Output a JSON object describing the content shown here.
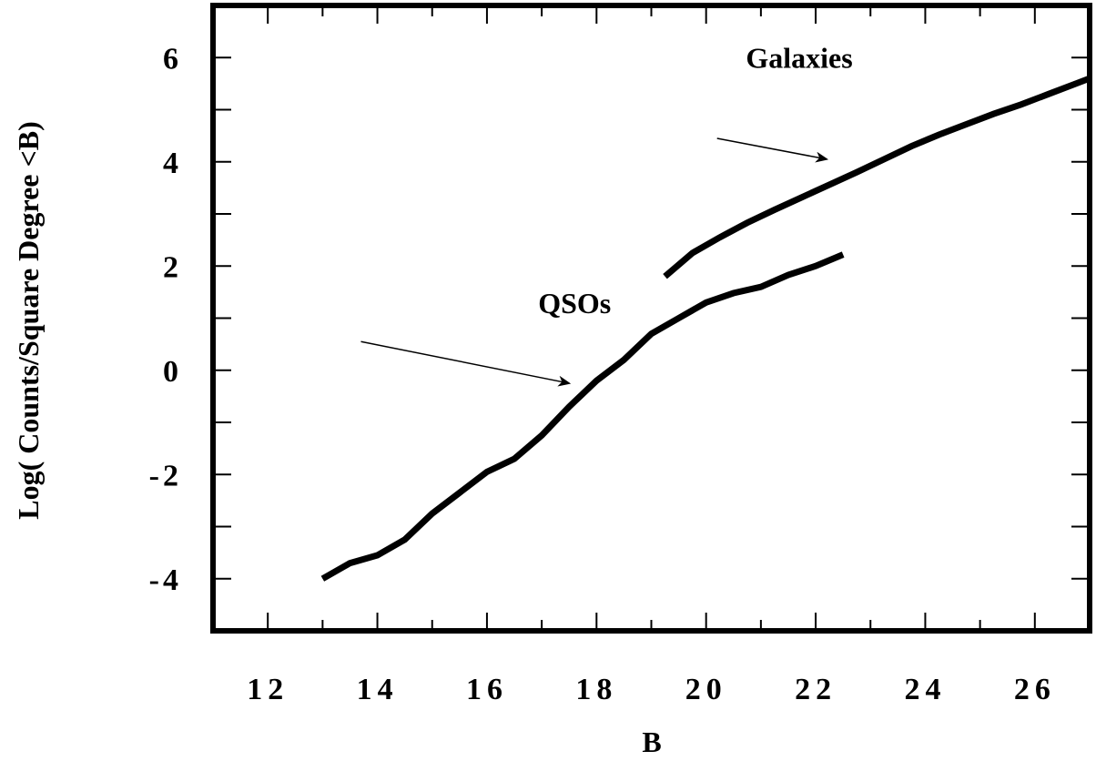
{
  "chart_data": {
    "type": "line",
    "title": "",
    "xlabel": "B",
    "ylabel": "Log( Counts/Square Degree <B)",
    "xlim": [
      11,
      27
    ],
    "ylim": [
      -5,
      7
    ],
    "x_ticks": [
      12,
      14,
      16,
      18,
      20,
      22,
      24,
      26
    ],
    "x_tick_labels": [
      "12",
      "14",
      "16",
      "18",
      "20",
      "22",
      "24",
      "26"
    ],
    "y_ticks": [
      -4,
      -2,
      0,
      2,
      4,
      6
    ],
    "y_tick_labels": [
      "-4",
      "-2",
      "0",
      "2",
      "4",
      "6"
    ],
    "grid": false,
    "series": [
      {
        "name": "QSOs",
        "x": [
          13.0,
          13.5,
          14.0,
          14.5,
          15.0,
          15.5,
          16.0,
          16.5,
          17.0,
          17.5,
          18.0,
          18.5,
          19.0,
          19.5,
          20.0,
          20.5,
          21.0,
          21.5,
          22.0,
          22.5
        ],
        "y": [
          -4.0,
          -3.7,
          -3.55,
          -3.25,
          -2.75,
          -2.35,
          -1.95,
          -1.7,
          -1.25,
          -0.7,
          -0.2,
          0.2,
          0.7,
          1.0,
          1.3,
          1.48,
          1.6,
          1.83,
          2.0,
          2.22
        ]
      },
      {
        "name": "Galaxies",
        "x": [
          19.25,
          19.75,
          20.25,
          20.75,
          21.25,
          21.75,
          22.25,
          22.75,
          23.25,
          23.75,
          24.25,
          24.75,
          25.25,
          25.75,
          26.25,
          26.75,
          27.0
        ],
        "y": [
          1.8,
          2.25,
          2.55,
          2.83,
          3.08,
          3.32,
          3.56,
          3.8,
          4.05,
          4.3,
          4.52,
          4.72,
          4.92,
          5.1,
          5.3,
          5.5,
          5.6
        ]
      }
    ],
    "annotations": [
      {
        "text": "Galaxies",
        "x": 21.7,
        "y": 5.8,
        "arrow_from": [
          20.2,
          4.45
        ],
        "arrow_to": [
          22.2,
          4.05
        ]
      },
      {
        "text": "QSOs",
        "x": 17.6,
        "y": 1.1,
        "arrow_from": [
          13.7,
          0.55
        ],
        "arrow_to": [
          17.5,
          -0.25
        ]
      }
    ]
  }
}
